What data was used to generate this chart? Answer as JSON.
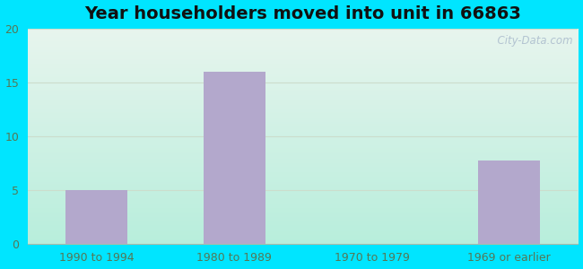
{
  "title": "Year householders moved into unit in 66863",
  "categories": [
    "1990 to 1994",
    "1980 to 1989",
    "1970 to 1979",
    "1969 or earlier"
  ],
  "values": [
    5,
    16,
    0,
    7.7
  ],
  "bar_color": "#b3a8cc",
  "ylim": [
    0,
    20
  ],
  "yticks": [
    0,
    5,
    10,
    15,
    20
  ],
  "background_outer": "#00e5ff",
  "grid_color": "#ccddcc",
  "title_fontsize": 14,
  "tick_fontsize": 9,
  "watermark": "  City-Data.com",
  "tick_color": "#557755",
  "bottom_spine_color": "#aabbaa"
}
